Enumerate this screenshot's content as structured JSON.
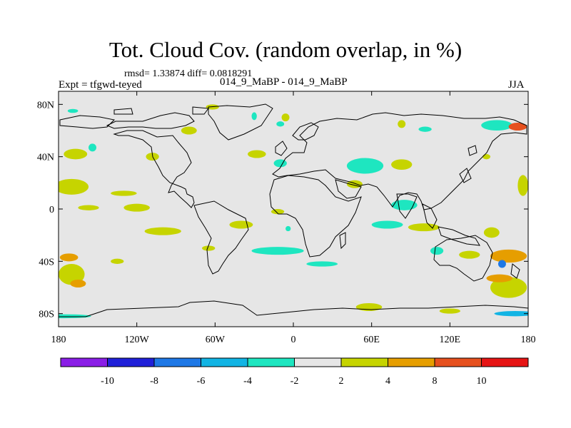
{
  "header": {
    "title": "Tot. Cloud Cov. (random overlap, in %)",
    "stats": "rmsd= 1.33874  diff= 0.0818291",
    "experiment": "Expt = tfgwd-teyed",
    "case": "014_9_MaBP - 014_9_MaBP",
    "season": "JJA"
  },
  "chart_data": {
    "type": "heatmap",
    "projection": "cylindrical-equidistant",
    "xlim": [
      -180,
      180
    ],
    "ylim": [
      -90,
      90
    ],
    "x_ticks": [
      {
        "value": -180,
        "label": "180"
      },
      {
        "value": -120,
        "label": "120W"
      },
      {
        "value": -60,
        "label": "60W"
      },
      {
        "value": 0,
        "label": "0"
      },
      {
        "value": 60,
        "label": "60E"
      },
      {
        "value": 120,
        "label": "120E"
      },
      {
        "value": 180,
        "label": "180"
      }
    ],
    "y_ticks": [
      {
        "value": 80,
        "label": "80N"
      },
      {
        "value": 40,
        "label": "40N"
      },
      {
        "value": 0,
        "label": "0"
      },
      {
        "value": -40,
        "label": "40S"
      },
      {
        "value": -80,
        "label": "80S"
      }
    ],
    "colorbar": {
      "boundary_labels": [
        "-10",
        "-8",
        "-6",
        "-4",
        "-2",
        "2",
        "4",
        "8",
        "10"
      ],
      "colors": [
        "#8a1ee6",
        "#2020d8",
        "#1e78e6",
        "#12b4e4",
        "#1ee6c0",
        "#e6e6e6",
        "#c6d400",
        "#e69e00",
        "#e6501e",
        "#e61414"
      ]
    },
    "background_color": "#e6e6e6",
    "anomalies": [
      {
        "lon": -169,
        "lat": 75,
        "rlon": 4,
        "rlat": 1.5,
        "level": "-2 to -4"
      },
      {
        "lon": -167,
        "lat": 42,
        "rlon": 9,
        "rlat": 4,
        "level": "2 to 4"
      },
      {
        "lon": -154,
        "lat": 47,
        "rlon": 3,
        "rlat": 3,
        "level": "-2 to -4"
      },
      {
        "lon": -170,
        "lat": 17,
        "rlon": 13,
        "rlat": 6,
        "level": "2 to 4"
      },
      {
        "lon": -130,
        "lat": 12,
        "rlon": 10,
        "rlat": 2,
        "level": "2 to 4"
      },
      {
        "lon": -120,
        "lat": 1,
        "rlon": 10,
        "rlat": 3,
        "level": "2 to 4"
      },
      {
        "lon": -157,
        "lat": 1,
        "rlon": 8,
        "rlat": 2,
        "level": "2 to 4"
      },
      {
        "lon": -108,
        "lat": 40,
        "rlon": 5,
        "rlat": 3,
        "level": "2 to 4"
      },
      {
        "lon": -80,
        "lat": 60,
        "rlon": 6,
        "rlat": 3,
        "level": "2 to 4"
      },
      {
        "lon": -62,
        "lat": 78,
        "rlon": 5,
        "rlat": 2,
        "level": "2 to 4"
      },
      {
        "lon": -28,
        "lat": 42,
        "rlon": 7,
        "rlat": 3,
        "level": "2 to 4"
      },
      {
        "lon": -30,
        "lat": 71,
        "rlon": 2,
        "rlat": 3,
        "level": "-2 to -4"
      },
      {
        "lon": -10,
        "lat": 65,
        "rlon": 3,
        "rlat": 2,
        "level": "-2 to -4"
      },
      {
        "lon": -6,
        "lat": 70,
        "rlon": 3,
        "rlat": 3,
        "level": "2 to 4"
      },
      {
        "lon": -40,
        "lat": -12,
        "rlon": 9,
        "rlat": 3,
        "level": "2 to 4"
      },
      {
        "lon": -12,
        "lat": -2,
        "rlon": 5,
        "rlat": 2,
        "level": "2 to 4"
      },
      {
        "lon": -4,
        "lat": -15,
        "rlon": 2,
        "rlat": 2,
        "level": "-2 to -4"
      },
      {
        "lon": -10,
        "lat": 35,
        "rlon": 5,
        "rlat": 3,
        "level": "-2 to -4"
      },
      {
        "lon": -100,
        "lat": -17,
        "rlon": 14,
        "rlat": 3,
        "level": "2 to 4"
      },
      {
        "lon": -65,
        "lat": -30,
        "rlon": 5,
        "rlat": 2,
        "level": "2 to 4"
      },
      {
        "lon": -12,
        "lat": -32,
        "rlon": 20,
        "rlat": 3,
        "level": "-2 to -4"
      },
      {
        "lon": 22,
        "lat": -42,
        "rlon": 12,
        "rlat": 2,
        "level": "-2 to -4"
      },
      {
        "lon": 55,
        "lat": 33,
        "rlon": 14,
        "rlat": 6,
        "level": "-2 to -4"
      },
      {
        "lon": 47,
        "lat": 19,
        "rlon": 6,
        "rlat": 3,
        "level": "2 to 4"
      },
      {
        "lon": 83,
        "lat": 34,
        "rlon": 8,
        "rlat": 4,
        "level": "2 to 4"
      },
      {
        "lon": 85,
        "lat": 3,
        "rlon": 10,
        "rlat": 4,
        "level": "-2 to -4"
      },
      {
        "lon": 72,
        "lat": -12,
        "rlon": 12,
        "rlat": 3,
        "level": "-2 to -4"
      },
      {
        "lon": 100,
        "lat": -14,
        "rlon": 12,
        "rlat": 3,
        "level": "2 to 4"
      },
      {
        "lon": 101,
        "lat": 61,
        "rlon": 5,
        "rlat": 2,
        "level": "-2 to -4"
      },
      {
        "lon": 83,
        "lat": 65,
        "rlon": 3,
        "rlat": 3,
        "level": "2 to 4"
      },
      {
        "lon": 156,
        "lat": 64,
        "rlon": 12,
        "rlat": 4,
        "level": "-2 to -4"
      },
      {
        "lon": 172,
        "lat": 63,
        "rlon": 7,
        "rlat": 3,
        "level": "8 to 10"
      },
      {
        "lon": 148,
        "lat": 40,
        "rlon": 3,
        "rlat": 2,
        "level": "2 to 4"
      },
      {
        "lon": 176,
        "lat": 18,
        "rlon": 4,
        "rlat": 8,
        "level": "2 to 4"
      },
      {
        "lon": 152,
        "lat": -18,
        "rlon": 6,
        "rlat": 4,
        "level": "2 to 4"
      },
      {
        "lon": 165,
        "lat": -36,
        "rlon": 14,
        "rlat": 5,
        "level": "4 to 8"
      },
      {
        "lon": 165,
        "lat": -60,
        "rlon": 14,
        "rlat": 8,
        "level": "2 to 4"
      },
      {
        "lon": 158,
        "lat": -53,
        "rlon": 10,
        "rlat": 3,
        "level": "4 to 8"
      },
      {
        "lon": -170,
        "lat": -50,
        "rlon": 10,
        "rlat": 8,
        "level": "2 to 4"
      },
      {
        "lon": -165,
        "lat": -57,
        "rlon": 6,
        "rlat": 3,
        "level": "4 to 8"
      },
      {
        "lon": -172,
        "lat": -37,
        "rlon": 7,
        "rlat": 3,
        "level": "4 to 8"
      },
      {
        "lon": -135,
        "lat": -40,
        "rlon": 5,
        "rlat": 2,
        "level": "2 to 4"
      },
      {
        "lon": 135,
        "lat": -35,
        "rlon": 8,
        "rlat": 3,
        "level": "2 to 4"
      },
      {
        "lon": 110,
        "lat": -32,
        "rlon": 5,
        "rlat": 3,
        "level": "-2 to -4"
      },
      {
        "lon": 58,
        "lat": -75,
        "rlon": 10,
        "rlat": 3,
        "level": "2 to 4"
      },
      {
        "lon": 120,
        "lat": -78,
        "rlon": 8,
        "rlat": 2,
        "level": "2 to 4"
      },
      {
        "lon": -175,
        "lat": -82,
        "rlon": 20,
        "rlat": 1.5,
        "level": "-2 to -4"
      },
      {
        "lon": 170,
        "lat": -80,
        "rlon": 16,
        "rlat": 2,
        "level": "-4 to -6"
      },
      {
        "lon": 160,
        "lat": -42,
        "rlon": 3,
        "rlat": 3,
        "level": "-6 to -8"
      }
    ]
  }
}
